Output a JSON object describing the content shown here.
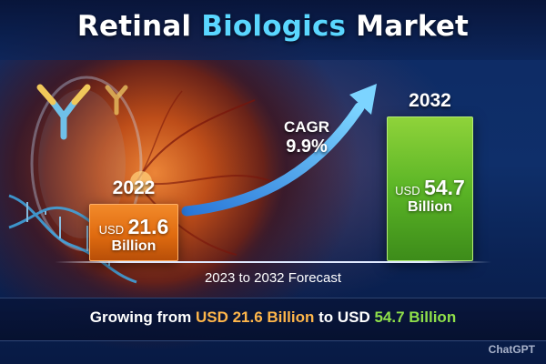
{
  "title": {
    "part1": "Retinal ",
    "accent": "Biologics",
    "part2": " Market"
  },
  "chart_data": {
    "type": "bar",
    "categories": [
      "2022",
      "2032"
    ],
    "values": [
      21.6,
      54.7
    ],
    "bar_labels": [
      {
        "currency": "USD",
        "value": "21.6",
        "unit": "Billion"
      },
      {
        "currency": "USD",
        "value": "54.7",
        "unit": "Billion"
      }
    ],
    "ylim": [
      0,
      70
    ],
    "grid": false,
    "colors": [
      "#e06b10",
      "#5bb526"
    ],
    "annotations": [
      {
        "label": "CAGR",
        "value": "9.9%"
      }
    ]
  },
  "forecast_label": "2023 to 2032 Forecast",
  "summary": {
    "lead": "Growing ",
    "from_word": "from ",
    "from_value": "USD 21.6 Billion",
    "to_word": " to USD ",
    "to_value": "54.7 Billion"
  },
  "watermark": "ChatGPT",
  "colors": {
    "title_accent": "#5ad7ff",
    "from_highlight": "#ffb64a",
    "to_highlight": "#8fe04a",
    "arrow": "#5fb6ff"
  },
  "icons": [
    "eye-illustration",
    "antibody-icon",
    "dna-helix-icon",
    "growth-arrow-icon"
  ]
}
